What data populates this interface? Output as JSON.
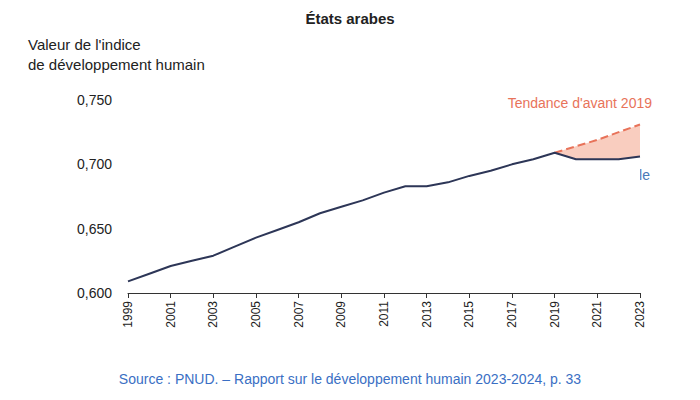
{
  "chart_data": {
    "type": "line",
    "title": "États arabes",
    "y_label": "Valeur de l'indice\nde développement humain",
    "source": "Source : PNUD. – Rapport sur le développement humain 2023-2024, p. 33",
    "x": [
      1999,
      2000,
      2001,
      2002,
      2003,
      2004,
      2005,
      2006,
      2007,
      2008,
      2009,
      2010,
      2011,
      2012,
      2013,
      2014,
      2015,
      2016,
      2017,
      2018,
      2019,
      2020,
      2021,
      2022,
      2023
    ],
    "series": [
      {
        "name": "Évolution réelle",
        "color": "#2d3657",
        "line_style": "solid",
        "values": [
          0.609,
          0.615,
          0.621,
          0.625,
          0.629,
          0.636,
          0.643,
          0.649,
          0.655,
          0.662,
          0.667,
          0.672,
          0.678,
          0.683,
          0.683,
          0.686,
          0.691,
          0.695,
          0.7,
          0.704,
          0.709,
          0.704,
          0.704,
          0.704,
          0.706
        ]
      },
      {
        "name": "Tendance d'avant 2019",
        "color": "#e8735a",
        "line_style": "dashed",
        "values": [
          null,
          null,
          null,
          null,
          null,
          null,
          null,
          null,
          null,
          null,
          null,
          null,
          null,
          null,
          null,
          null,
          null,
          null,
          null,
          null,
          0.709,
          0.714,
          0.719,
          0.725,
          0.731
        ]
      }
    ],
    "xlim": [
      1999,
      2023
    ],
    "xticks": [
      1999,
      2001,
      2003,
      2005,
      2007,
      2009,
      2011,
      2013,
      2015,
      2017,
      2019,
      2021,
      2023
    ],
    "ylim": [
      0.6,
      0.75
    ],
    "yticks": [
      {
        "value": 0.6,
        "label": "0,600"
      },
      {
        "value": 0.65,
        "label": "0,650"
      },
      {
        "value": 0.7,
        "label": "0,700"
      },
      {
        "value": 0.75,
        "label": "0,750"
      }
    ],
    "grid": false
  }
}
